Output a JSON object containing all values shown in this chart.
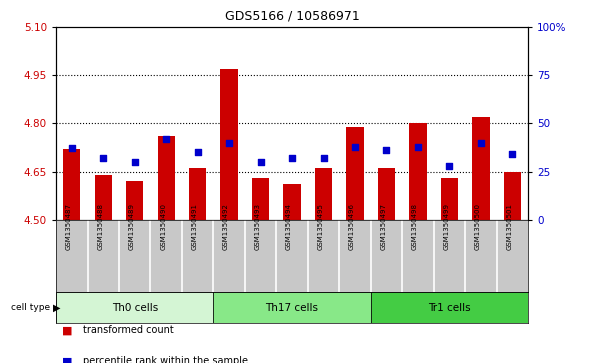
{
  "title": "GDS5166 / 10586971",
  "samples": [
    "GSM1350487",
    "GSM1350488",
    "GSM1350489",
    "GSM1350490",
    "GSM1350491",
    "GSM1350492",
    "GSM1350493",
    "GSM1350494",
    "GSM1350495",
    "GSM1350496",
    "GSM1350497",
    "GSM1350498",
    "GSM1350499",
    "GSM1350500",
    "GSM1350501"
  ],
  "red_values": [
    4.72,
    4.64,
    4.62,
    4.76,
    4.66,
    4.97,
    4.63,
    4.61,
    4.66,
    4.79,
    4.66,
    4.8,
    4.63,
    4.82,
    4.65
  ],
  "blue_values": [
    37,
    32,
    30,
    42,
    35,
    40,
    30,
    32,
    32,
    38,
    36,
    38,
    28,
    40,
    34
  ],
  "ymin": 4.5,
  "ymax": 5.1,
  "y2min": 0,
  "y2max": 100,
  "yticks": [
    4.5,
    4.65,
    4.8,
    4.95,
    5.1
  ],
  "y2ticks": [
    0,
    25,
    50,
    75,
    100
  ],
  "groups": [
    {
      "label": "Th0 cells",
      "start": 0,
      "end": 5
    },
    {
      "label": "Th17 cells",
      "start": 5,
      "end": 10
    },
    {
      "label": "Tr1 cells",
      "start": 10,
      "end": 15
    }
  ],
  "group_colors": [
    "#d4f5d4",
    "#88e888",
    "#44cc44"
  ],
  "bar_color": "#cc0000",
  "dot_color": "#0000cc",
  "bar_width": 0.55,
  "label_bg_color": "#c8c8c8",
  "label_divider_color": "#ffffff",
  "plot_bg_color": "#ffffff",
  "left_tick_color": "#cc0000",
  "right_tick_color": "#0000cc",
  "legend_items": [
    "transformed count",
    "percentile rank within the sample"
  ],
  "legend_colors": [
    "#cc0000",
    "#0000cc"
  ]
}
